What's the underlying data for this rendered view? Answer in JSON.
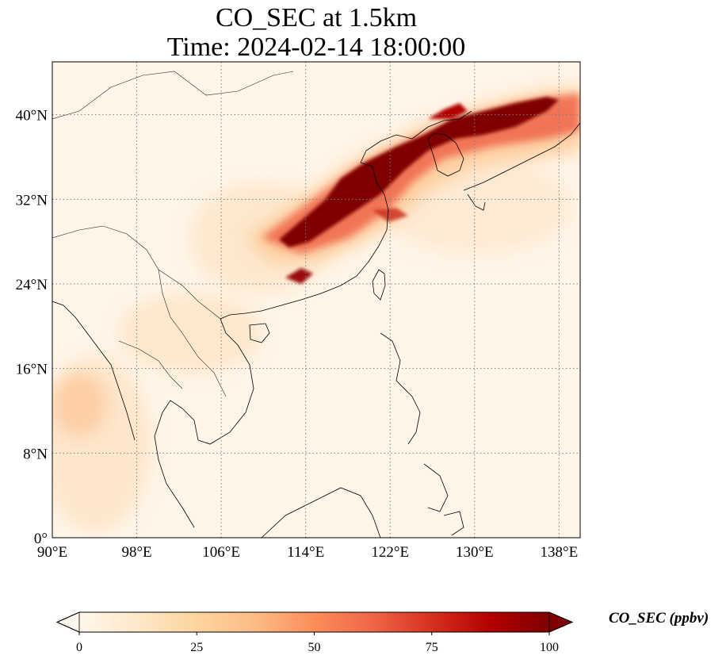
{
  "title": {
    "line1": "CO_SEC at 1.5km",
    "line2": "Time: 2024-02-14 18:00:00"
  },
  "map": {
    "projection": "PlateCarree",
    "lon_range": [
      90,
      140
    ],
    "lat_range": [
      0,
      45
    ],
    "lon_ticks": [
      {
        "value": 90,
        "label": "90°E"
      },
      {
        "value": 98,
        "label": "98°E"
      },
      {
        "value": 106,
        "label": "106°E"
      },
      {
        "value": 114,
        "label": "114°E"
      },
      {
        "value": 122,
        "label": "122°E"
      },
      {
        "value": 130,
        "label": "130°E"
      },
      {
        "value": 138,
        "label": "138°E"
      }
    ],
    "lat_ticks": [
      {
        "value": 0,
        "label": "0°"
      },
      {
        "value": 8,
        "label": "8°N"
      },
      {
        "value": 16,
        "label": "16°N"
      },
      {
        "value": 24,
        "label": "24°N"
      },
      {
        "value": 32,
        "label": "32°N"
      },
      {
        "value": 40,
        "label": "40°N"
      }
    ],
    "gridlines": "dotted",
    "plume_max_region": "Central/Eastern China, Yellow Sea, Korea and Japan"
  },
  "colorbar": {
    "label": "CO_SEC (ppbv)",
    "colormap": "OrRd",
    "min": 0,
    "max": 100,
    "extend": "both",
    "ticks": [
      {
        "value": 0,
        "label": "0"
      },
      {
        "value": 25,
        "label": "25"
      },
      {
        "value": 50,
        "label": "50"
      },
      {
        "value": 75,
        "label": "75"
      },
      {
        "value": 100,
        "label": "100"
      }
    ],
    "colors": [
      "#fff7ec",
      "#fee8c8",
      "#fdd49e",
      "#fdbb84",
      "#fc8d59",
      "#ef6548",
      "#d7301f",
      "#b30000",
      "#7f0000"
    ]
  }
}
